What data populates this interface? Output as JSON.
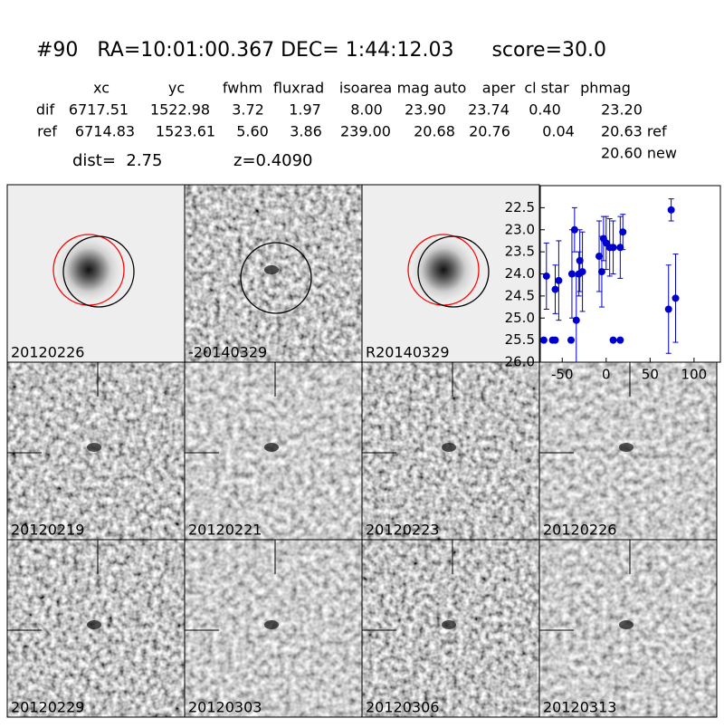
{
  "header": {
    "title": "#90   RA=10:01:00.367 DEC= 1:44:12.03      score=30.0"
  },
  "table": {
    "columns": [
      "xc",
      "yc",
      "fwhm",
      "fluxrad",
      "isoarea",
      "mag auto",
      "aper",
      "cl star",
      "phmag"
    ],
    "rows": [
      [
        "dif",
        "6717.51",
        "1522.98",
        "3.72",
        "1.97",
        "8.00",
        "23.90",
        "23.74",
        "0.40",
        "23.20"
      ],
      [
        "ref",
        "6714.83",
        "1523.61",
        "5.60",
        "3.86",
        "239.00",
        "20.68",
        "20.76",
        "0.04",
        "20.63 ref"
      ]
    ],
    "extra": "20.60 new"
  },
  "info": {
    "dist": "dist=  2.75",
    "z": "z=0.4090"
  },
  "stamps": [
    {
      "label": "20120226",
      "color": "#000000"
    },
    {
      "label": "-20140329",
      "color": "#000000"
    },
    {
      "label": "R20140329",
      "color": "#000000"
    },
    {
      "label": "20120219",
      "color": "#000000"
    },
    {
      "label": "20120221",
      "color": "#000000"
    },
    {
      "label": "20120223",
      "color": "#000000"
    },
    {
      "label": "20120226",
      "color": "#ff0000"
    },
    {
      "label": "20120229",
      "color": "#000000"
    },
    {
      "label": "20120303",
      "color": "#000000"
    },
    {
      "label": "20120306",
      "color": "#000000"
    },
    {
      "label": "20120313",
      "color": "#000000"
    }
  ],
  "chart_data": {
    "type": "scatter",
    "color": "#0000cc",
    "x": [
      -68,
      -71,
      -61,
      -58,
      -58,
      -54,
      -40,
      -39,
      -36,
      -34,
      -31,
      -30,
      -27,
      -8,
      -5,
      -3,
      0,
      4,
      8,
      8,
      16,
      16,
      19,
      74,
      71,
      79
    ],
    "values": [
      24.05,
      25.5,
      25.5,
      25.5,
      24.35,
      24.15,
      25.5,
      24.0,
      23.0,
      25.05,
      24.0,
      23.7,
      23.95,
      23.6,
      23.95,
      23.2,
      23.3,
      23.4,
      23.4,
      25.5,
      25.5,
      23.4,
      23.05,
      22.55,
      24.8,
      24.55
    ],
    "errors": [
      0.75,
      0,
      0,
      0,
      0.55,
      0.9,
      0,
      1.0,
      0.5,
      1.0,
      0.5,
      0.7,
      0.9,
      0.8,
      0.8,
      0.5,
      0.6,
      0.65,
      0.6,
      0,
      0,
      0.7,
      0.4,
      0.25,
      1.0,
      1.0
    ],
    "xlim": [
      -75,
      130
    ],
    "ylim": [
      26.0,
      22.0
    ],
    "inverted_y": true,
    "xticks": [
      -50,
      0,
      50,
      100
    ],
    "yticks": [
      22.5,
      {
        "value": 23,
        "label": "23.0"
      },
      23.5,
      {
        "value": 24,
        "label": "24.0"
      },
      24.5,
      {
        "value": 25,
        "label": "25.0"
      },
      25.5,
      {
        "value": 26,
        "label": "26.0"
      }
    ]
  }
}
